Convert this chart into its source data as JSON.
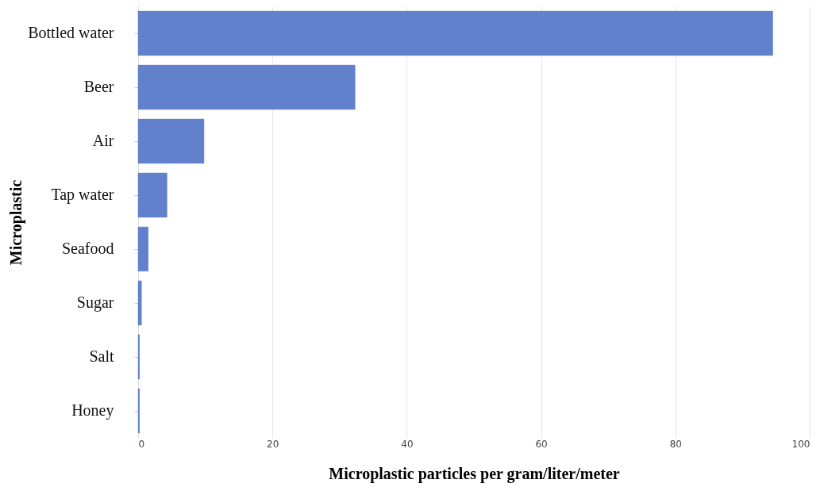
{
  "chart_data": {
    "type": "bar",
    "orientation": "horizontal",
    "xlabel": "Microplastic particles per gram/liter/meter",
    "ylabel": "Microplastic",
    "categories": [
      "Bottled water",
      "Beer",
      "Air",
      "Tap water",
      "Seafood",
      "Sugar",
      "Salt",
      "Honey"
    ],
    "values": [
      94.5,
      32.3,
      9.8,
      4.3,
      1.5,
      0.5,
      0.2,
      0.2
    ],
    "color": "#5f7fcc",
    "xlim": [
      0,
      100
    ],
    "xticks": [
      0,
      20,
      40,
      60,
      80,
      100
    ],
    "grid": "x"
  }
}
